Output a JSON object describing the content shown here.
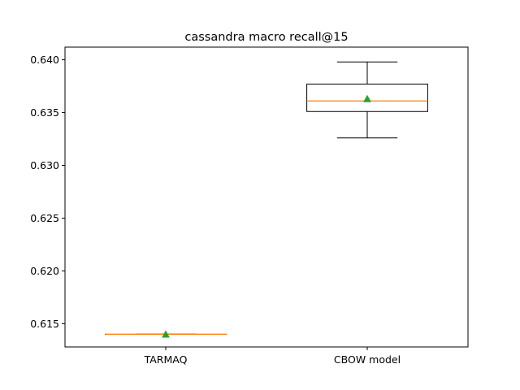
{
  "chart_data": {
    "type": "box",
    "title": "cassandra macro recall@15",
    "xlabel": "",
    "ylabel": "",
    "ylim": [
      0.6128,
      0.6412
    ],
    "yticks": [
      0.615,
      0.62,
      0.625,
      0.63,
      0.635,
      0.64
    ],
    "ytick_labels": [
      "0.615",
      "0.620",
      "0.625",
      "0.630",
      "0.635",
      "0.640"
    ],
    "categories": [
      "TARMAQ",
      "CBOW model"
    ],
    "boxes": [
      {
        "category": "TARMAQ",
        "whisker_low": 0.614,
        "q1": 0.614,
        "median": 0.614,
        "q3": 0.614,
        "whisker_high": 0.614,
        "mean": 0.614
      },
      {
        "category": "CBOW model",
        "whisker_low": 0.6326,
        "q1": 0.6351,
        "median": 0.6361,
        "q3": 0.6377,
        "whisker_high": 0.6398,
        "mean": 0.6363
      }
    ],
    "colors": {
      "box": "#000000",
      "median": "#ff7f0e",
      "mean_marker": "#2ca02c"
    },
    "grid": false,
    "legend": "none"
  }
}
